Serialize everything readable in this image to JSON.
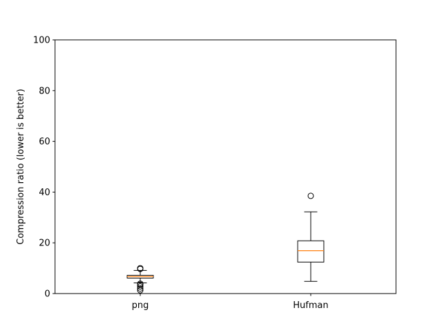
{
  "chart_data": {
    "type": "box",
    "title": "",
    "xlabel": "",
    "ylabel": "Compression ratio (lower is better)",
    "ylim": [
      0,
      100
    ],
    "yticks": [
      0,
      20,
      40,
      60,
      80,
      100
    ],
    "grid": false,
    "categories": [
      "png",
      "Hufman"
    ],
    "boxes": [
      {
        "category": "png",
        "whisker_low": 4.2,
        "q1": 6.1,
        "median": 6.7,
        "q3": 7.2,
        "whisker_high": 9.1,
        "outliers": [
          1.3,
          2.0,
          2.8,
          3.5,
          3.9,
          9.7,
          10.0
        ]
      },
      {
        "category": "Hufman",
        "whisker_low": 4.8,
        "q1": 12.4,
        "median": 16.9,
        "q3": 20.8,
        "whisker_high": 32.2,
        "outliers": [
          38.5
        ]
      }
    ],
    "colors": {
      "box": "#000000",
      "median": "#ff7f0e",
      "outlier": "#000000"
    }
  }
}
